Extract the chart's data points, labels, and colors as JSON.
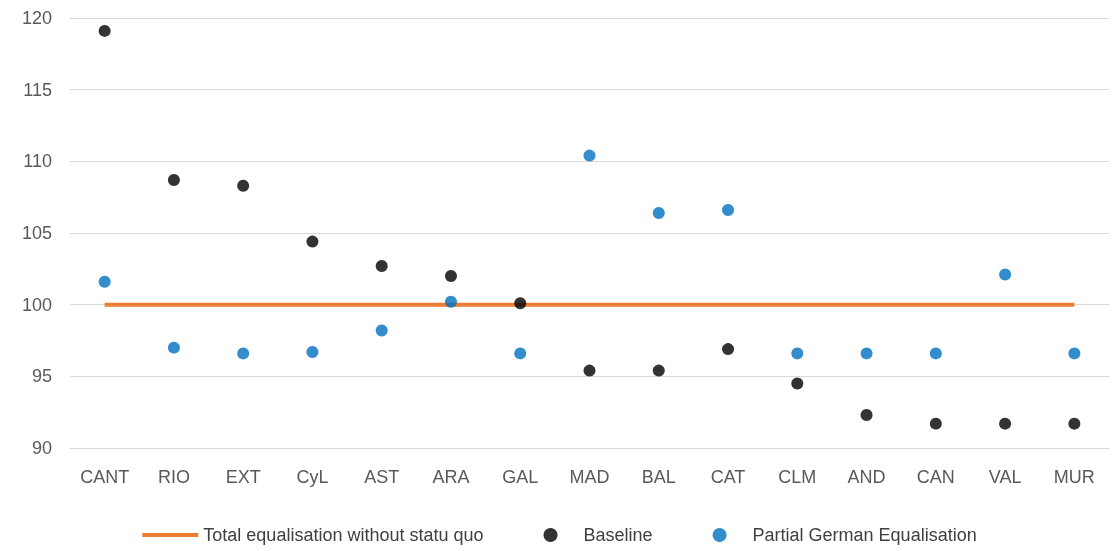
{
  "chart_data": {
    "type": "scatter",
    "categories": [
      "CANT",
      "RIO",
      "EXT",
      "CyL",
      "AST",
      "ARA",
      "GAL",
      "MAD",
      "BAL",
      "CAT",
      "CLM",
      "AND",
      "CAN",
      "VAL",
      "MUR"
    ],
    "series": [
      {
        "name": "Total equalisation without statu quo",
        "type": "line",
        "marker": "none",
        "color": "#ed7d31",
        "values": [
          100,
          100,
          100,
          100,
          100,
          100,
          100,
          100,
          100,
          100,
          100,
          100,
          100,
          100,
          100
        ]
      },
      {
        "name": "Baseline",
        "color": "#000000",
        "values": [
          119.1,
          108.7,
          108.3,
          104.4,
          102.7,
          102.0,
          100.1,
          95.4,
          95.4,
          96.9,
          94.5,
          92.3,
          91.7,
          91.7,
          91.7
        ]
      },
      {
        "name": "Partial German Equalisation",
        "color": "#0070c0",
        "values": [
          101.6,
          97.0,
          96.6,
          96.7,
          98.2,
          100.2,
          96.6,
          110.4,
          106.4,
          106.6,
          96.6,
          96.6,
          96.6,
          102.1,
          96.6
        ]
      }
    ],
    "ylim": [
      90,
      120
    ],
    "yticks": [
      90,
      95,
      100,
      105,
      110,
      115,
      120
    ],
    "grid": "y",
    "legend": "bottom",
    "marker": "circle"
  }
}
